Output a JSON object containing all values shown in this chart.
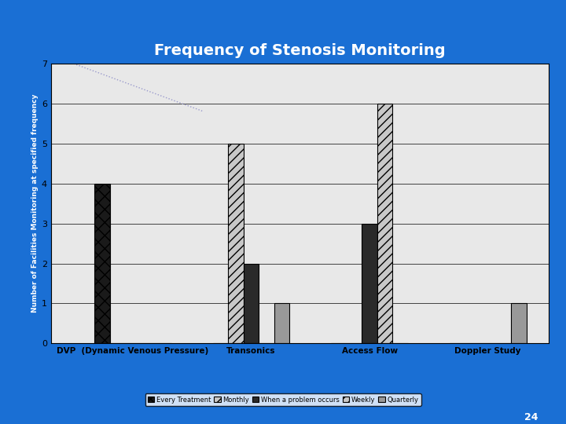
{
  "title": "Frequency of Stenosis Monitoring",
  "ylabel": "Number of Facilities Monitoring at specified frequency",
  "categories": [
    "DVP  (Dynamic Venous Pressure)",
    "Transonics",
    "Access Flow",
    "Doppler Study"
  ],
  "series": {
    "Every Treatment": [
      4,
      0,
      0,
      0
    ],
    "Monthly": [
      0,
      5,
      0,
      0
    ],
    "When a problem occurs": [
      0,
      2,
      3,
      0
    ],
    "Weekly": [
      0,
      0,
      6,
      0
    ],
    "Quarterly": [
      0,
      1,
      0,
      1
    ]
  },
  "ylim": [
    0,
    7
  ],
  "yticks": [
    0,
    1,
    2,
    3,
    4,
    5,
    6,
    7
  ],
  "background_color": "#1A6FD4",
  "plot_bg_color": "#E8E8E8",
  "title_color": "white",
  "title_fontsize": 14,
  "axis_label_color": "white",
  "tick_label_color": "black",
  "page_number": "24",
  "hatch_styles": [
    "xx",
    "///",
    "",
    "///",
    ""
  ],
  "face_colors": [
    "#1a1a1a",
    "#c8c8c8",
    "#2a2a2a",
    "#c8c8c8",
    "#999999"
  ],
  "edge_colors": [
    "black",
    "black",
    "black",
    "black",
    "black"
  ],
  "bar_width": 0.55,
  "dotted_line_color": "#9999cc"
}
